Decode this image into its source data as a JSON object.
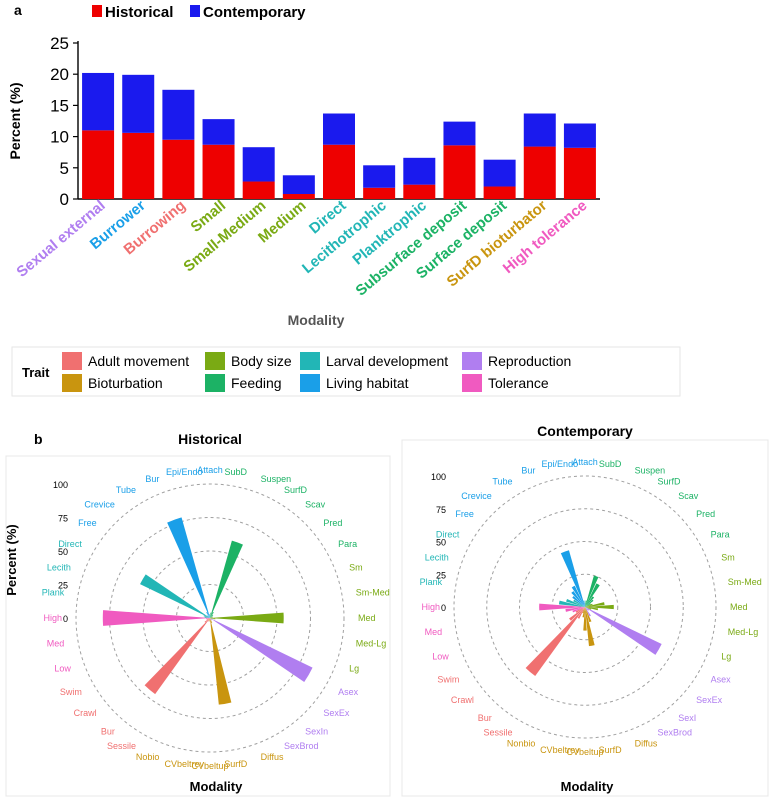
{
  "colors": {
    "historical": "#ee0000",
    "contemporary": "#1a1aee",
    "Adult movement": "#f07070",
    "Bioturbation": "#c9950f",
    "Body size": "#7aaa14",
    "Feeding": "#1cb265",
    "Larval development": "#22b6b6",
    "Living habitat": "#1a9fe8",
    "Reproduction": "#b07ef0",
    "Tolerance": "#f05ac0"
  },
  "panel_a": {
    "label": "a",
    "xlabel": "Modality",
    "legend_trait_title": "Trait"
  },
  "panel_b": {
    "label": "b",
    "ylabel": "Percent (%)",
    "xlabel_left": "Modality",
    "xlabel_right": "Modality"
  },
  "chart_data": [
    {
      "type": "bar",
      "stacked": true,
      "title": "",
      "xlabel": "Modality",
      "ylabel": "Percent (%)",
      "ylim": [
        0,
        25
      ],
      "yticks": [
        0,
        5,
        10,
        15,
        20,
        25
      ],
      "legend": [
        "Historical",
        "Contemporary"
      ],
      "categories": [
        "Sexual external",
        "Burrower",
        "Burrowing",
        "Small",
        "Small-Medium",
        "Medium",
        "Direct",
        "Lecithotrophic",
        "Planktrophic",
        "Subsurface deposit",
        "Surface deposit",
        "SurfD bioturbator",
        "High tolerance"
      ],
      "category_traits": [
        "Reproduction",
        "Living habitat",
        "Adult movement",
        "Body size",
        "Body size",
        "Body size",
        "Larval development",
        "Larval development",
        "Larval development",
        "Feeding",
        "Feeding",
        "Bioturbation",
        "Tolerance"
      ],
      "series": [
        {
          "name": "Historical",
          "values": [
            11,
            10.6,
            9.5,
            8.7,
            2.8,
            0.8,
            8.7,
            1.8,
            2.3,
            8.6,
            2.0,
            8.4,
            8.2
          ]
        },
        {
          "name": "Contemporary",
          "values": [
            9.2,
            9.3,
            8.0,
            4.1,
            5.5,
            3.0,
            5.0,
            3.6,
            4.3,
            3.8,
            4.3,
            5.3,
            3.9
          ]
        }
      ],
      "trait_legend": [
        "Adult movement",
        "Bioturbation",
        "Body size",
        "Feeding",
        "Larval development",
        "Living habitat",
        "Reproduction",
        "Tolerance"
      ]
    },
    {
      "type": "polar-bar",
      "title": "Historical",
      "xlabel": "Modality",
      "ylabel": "Percent (%)",
      "rlim": [
        0,
        100
      ],
      "rticks": [
        0,
        25,
        50,
        75,
        100
      ],
      "categories": [
        "Attach",
        "SubD",
        "Suspen",
        "SurfD",
        "Scav",
        "Pred",
        "Para",
        "Sm",
        "Sm-Med",
        "Med",
        "Med-Lg",
        "Lg",
        "Asex",
        "SexEx",
        "SexIn",
        "SexBrod",
        "Diffus",
        "SurfD",
        "CVbeltup",
        "CVbeltrev",
        "Nobio",
        "Sessile",
        "Bur",
        "Crawl",
        "Swim",
        "Low",
        "Med",
        "High",
        "Plank",
        "Lecith",
        "Direct",
        "Free",
        "Crevice",
        "Tube",
        "Bur",
        "Epi/Endo"
      ],
      "traits": [
        "Living habitat",
        "Feeding",
        "Feeding",
        "Feeding",
        "Feeding",
        "Feeding",
        "Feeding",
        "Body size",
        "Body size",
        "Body size",
        "Body size",
        "Body size",
        "Reproduction",
        "Reproduction",
        "Reproduction",
        "Reproduction",
        "Bioturbation",
        "Bioturbation",
        "Bioturbation",
        "Bioturbation",
        "Bioturbation",
        "Adult movement",
        "Adult movement",
        "Adult movement",
        "Adult movement",
        "Tolerance",
        "Tolerance",
        "Tolerance",
        "Larval development",
        "Larval development",
        "Larval development",
        "Living habitat",
        "Living habitat",
        "Living habitat",
        "Living habitat",
        "Living habitat"
      ],
      "values": [
        2,
        4,
        60,
        5,
        3,
        3,
        2,
        2,
        2,
        55,
        4,
        2,
        85,
        2,
        2,
        2,
        4,
        65,
        3,
        2,
        2,
        3,
        70,
        5,
        3,
        2,
        3,
        80,
        4,
        5,
        58,
        3,
        2,
        5,
        78,
        3
      ]
    },
    {
      "type": "polar-bar",
      "title": "Contemporary",
      "xlabel": "Modality",
      "ylabel": "",
      "rlim": [
        0,
        100
      ],
      "rticks": [
        0,
        25,
        50,
        75,
        100
      ],
      "categories": [
        "Attach",
        "SubD",
        "Suspen",
        "SurfD",
        "Scav",
        "Pred",
        "Para",
        "Sm",
        "Sm-Med",
        "Med",
        "Med-Lg",
        "Lg",
        "Asex",
        "SexEx",
        "SexI",
        "SexBrod",
        "Diffus",
        "SurfD",
        "CVbeltup",
        "CVbeltrev",
        "Nonbio",
        "Sessile",
        "Bur",
        "Crawl",
        "Swim",
        "Low",
        "Med",
        "High",
        "Plank",
        "Lecith",
        "Direct",
        "Free",
        "Crevice",
        "Tube",
        "Bur",
        "Epi/Endo"
      ],
      "traits": [
        "Living habitat",
        "Feeding",
        "Feeding",
        "Feeding",
        "Feeding",
        "Feeding",
        "Feeding",
        "Body size",
        "Body size",
        "Body size",
        "Body size",
        "Body size",
        "Reproduction",
        "Reproduction",
        "Reproduction",
        "Reproduction",
        "Bioturbation",
        "Bioturbation",
        "Bioturbation",
        "Bioturbation",
        "Bioturbation",
        "Adult movement",
        "Adult movement",
        "Adult movement",
        "Adult movement",
        "Tolerance",
        "Tolerance",
        "Tolerance",
        "Larval development",
        "Larval development",
        "Larval development",
        "Living habitat",
        "Living habitat",
        "Living habitat",
        "Living habitat",
        "Living habitat"
      ],
      "values": [
        3,
        5,
        25,
        20,
        10,
        8,
        5,
        6,
        15,
        22,
        10,
        5,
        65,
        4,
        3,
        8,
        12,
        30,
        18,
        8,
        5,
        10,
        65,
        15,
        8,
        10,
        15,
        35,
        20,
        15,
        10,
        12,
        15,
        18,
        45,
        5
      ]
    }
  ]
}
